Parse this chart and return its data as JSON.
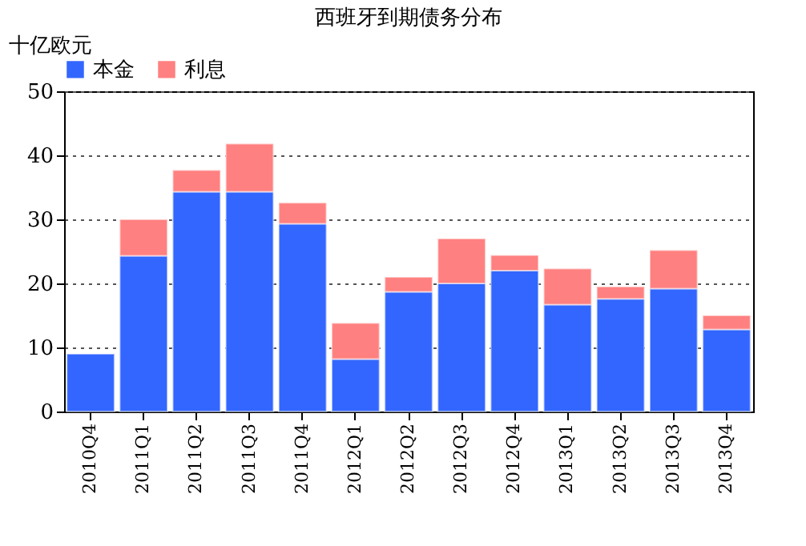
{
  "chart_data": {
    "type": "bar",
    "title": "西班牙到期债务分布",
    "ylabel": "十亿欧元",
    "stacked": true,
    "categories": [
      "2010Q4",
      "2011Q1",
      "2011Q2",
      "2011Q3",
      "2011Q4",
      "2012Q1",
      "2012Q2",
      "2012Q3",
      "2012Q4",
      "2013Q1",
      "2013Q2",
      "2013Q3",
      "2013Q4"
    ],
    "series": [
      {
        "name": "本金",
        "color": "#3366ff",
        "values": [
          9,
          24.3,
          34.3,
          34.3,
          29.3,
          8.2,
          18.7,
          20,
          22,
          16.7,
          17.6,
          19.2,
          12.8
        ]
      },
      {
        "name": "利息",
        "color": "#ff8080",
        "values": [
          null,
          5.7,
          3.4,
          7.5,
          3.3,
          5.6,
          2.3,
          7,
          2.4,
          5.6,
          1.9,
          6,
          2.2
        ]
      }
    ],
    "ylim": [
      0,
      50
    ],
    "yticks": [
      0,
      10,
      20,
      30,
      40,
      50
    ],
    "grid": "y",
    "legend": "top"
  }
}
